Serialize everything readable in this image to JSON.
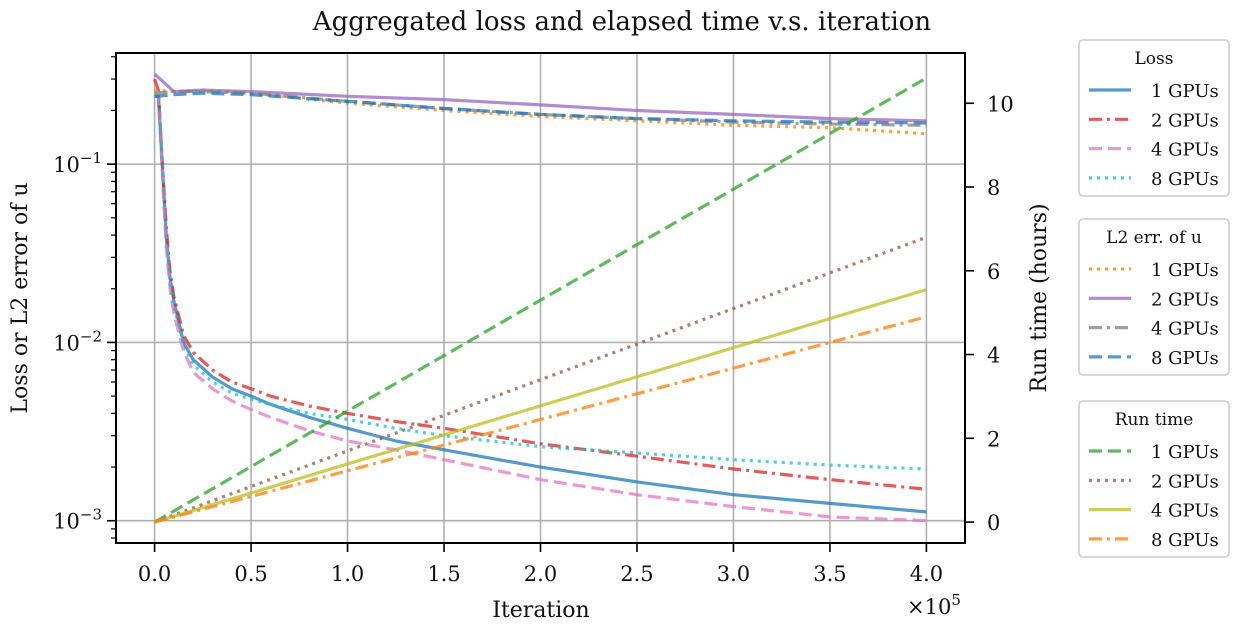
{
  "chart_data": {
    "type": "line",
    "title": "Aggregated loss and elapsed time v.s. iteration",
    "xlabel": "Iteration",
    "ylabel_left": "Loss or L2 error of u",
    "ylabel_right": "Run time (hours)",
    "x_scale_note": "×10^5",
    "x_ticks": [
      "0.0",
      "0.5",
      "1.0",
      "1.5",
      "2.0",
      "2.5",
      "3.0",
      "3.5",
      "4.0"
    ],
    "y_left_ticks": [
      "10^-1",
      "10^-2",
      "10^-3"
    ],
    "y_right_ticks": [
      "0",
      "2",
      "4",
      "6",
      "8",
      "10"
    ],
    "xlim": [
      -20000,
      420000
    ],
    "ylim_left": [
      0.00075,
      0.42
    ],
    "ylim_right": [
      -0.5,
      11.2
    ],
    "y_left_scale": "log",
    "grid": true,
    "legends": [
      {
        "title": "Loss",
        "axis": "left",
        "series": [
          {
            "name": "1 GPUs",
            "color": "#1f77b4",
            "dash": "solid",
            "x": [
              0,
              2000,
              4000,
              6000,
              8000,
              10000,
              15000,
              20000,
              30000,
              40000,
              50000,
              60000,
              80000,
              100000,
              125000,
              150000,
              200000,
              250000,
              300000,
              350000,
              400000
            ],
            "y": [
              0.24,
              0.24,
              0.1,
              0.04,
              0.023,
              0.017,
              0.01,
              0.008,
              0.0064,
              0.0055,
              0.005,
              0.0045,
              0.0038,
              0.0033,
              0.0028,
              0.0025,
              0.002,
              0.00165,
              0.0014,
              0.00125,
              0.00112
            ]
          },
          {
            "name": "2 GPUs",
            "color": "#d62728",
            "dash": "dashdot",
            "x": [
              0,
              2000,
              4000,
              6000,
              8000,
              10000,
              15000,
              20000,
              30000,
              40000,
              50000,
              60000,
              80000,
              100000,
              125000,
              150000,
              200000,
              250000,
              300000,
              350000,
              400000
            ],
            "y": [
              0.3,
              0.26,
              0.1,
              0.045,
              0.025,
              0.018,
              0.011,
              0.0088,
              0.007,
              0.006,
              0.0055,
              0.005,
              0.0044,
              0.004,
              0.0036,
              0.0033,
              0.0027,
              0.0023,
              0.00195,
              0.0017,
              0.0015
            ]
          },
          {
            "name": "4 GPUs",
            "color": "#e377c2",
            "dash": "dashed",
            "x": [
              0,
              2000,
              4000,
              6000,
              8000,
              10000,
              15000,
              20000,
              30000,
              40000,
              50000,
              60000,
              80000,
              100000,
              125000,
              150000,
              200000,
              250000,
              300000,
              350000,
              400000
            ],
            "y": [
              0.24,
              0.24,
              0.09,
              0.035,
              0.02,
              0.0145,
              0.009,
              0.0068,
              0.0055,
              0.0047,
              0.0042,
              0.0038,
              0.0032,
              0.0028,
              0.0025,
              0.0022,
              0.0017,
              0.0014,
              0.0012,
              0.00105,
              0.001
            ]
          },
          {
            "name": "8 GPUs",
            "color": "#17becf",
            "dash": "dotted",
            "x": [
              0,
              2000,
              4000,
              6000,
              8000,
              10000,
              15000,
              20000,
              30000,
              40000,
              50000,
              60000,
              80000,
              100000,
              125000,
              150000,
              200000,
              250000,
              300000,
              350000,
              400000
            ],
            "y": [
              0.24,
              0.24,
              0.1,
              0.04,
              0.022,
              0.016,
              0.0098,
              0.0075,
              0.006,
              0.0052,
              0.0048,
              0.0045,
              0.004,
              0.0037,
              0.0033,
              0.003,
              0.0026,
              0.0024,
              0.0022,
              0.00205,
              0.00195
            ]
          }
        ]
      },
      {
        "title": "L2 err. of u",
        "axis": "left",
        "series": [
          {
            "name": "1 GPUs",
            "color": "#ff7f0e",
            "dash": "dotted",
            "x": [
              0,
              10000,
              25000,
              50000,
              100000,
              150000,
              200000,
              250000,
              300000,
              350000,
              400000
            ],
            "y": [
              0.26,
              0.255,
              0.26,
              0.25,
              0.22,
              0.2,
              0.185,
              0.175,
              0.165,
              0.16,
              0.148
            ]
          },
          {
            "name": "2 GPUs",
            "color": "#9467bd",
            "dash": "solid",
            "x": [
              0,
              10000,
              25000,
              50000,
              100000,
              150000,
              200000,
              250000,
              300000,
              350000,
              400000
            ],
            "y": [
              0.32,
              0.255,
              0.26,
              0.255,
              0.24,
              0.23,
              0.215,
              0.2,
              0.19,
              0.18,
              0.175
            ]
          },
          {
            "name": "4 GPUs",
            "color": "#7f7f7f",
            "dash": "dashdot",
            "x": [
              0,
              10000,
              25000,
              50000,
              100000,
              150000,
              200000,
              250000,
              300000,
              350000,
              400000
            ],
            "y": [
              0.25,
              0.255,
              0.255,
              0.25,
              0.225,
              0.205,
              0.19,
              0.18,
              0.172,
              0.168,
              0.165
            ]
          },
          {
            "name": "8 GPUs",
            "color": "#1f77b4",
            "dash": "dashed",
            "x": [
              0,
              10000,
              25000,
              50000,
              100000,
              150000,
              200000,
              250000,
              300000,
              350000,
              400000
            ],
            "y": [
              0.24,
              0.245,
              0.25,
              0.245,
              0.225,
              0.205,
              0.19,
              0.18,
              0.175,
              0.172,
              0.17
            ]
          }
        ]
      },
      {
        "title": "Run time",
        "axis": "right",
        "series": [
          {
            "name": "1 GPUs",
            "color": "#2ca02c",
            "dash": "dashed",
            "x": [
              0,
              400000
            ],
            "y": [
              0,
              10.6
            ]
          },
          {
            "name": "2 GPUs",
            "color": "#8c564b",
            "dash": "dotted",
            "x": [
              0,
              400000
            ],
            "y": [
              0,
              6.8
            ]
          },
          {
            "name": "4 GPUs",
            "color": "#bcbd22",
            "dash": "solid",
            "x": [
              0,
              400000
            ],
            "y": [
              0,
              5.55
            ]
          },
          {
            "name": "8 GPUs",
            "color": "#ff7f0e",
            "dash": "dashdot",
            "x": [
              0,
              400000
            ],
            "y": [
              0,
              4.9
            ]
          }
        ]
      }
    ]
  }
}
